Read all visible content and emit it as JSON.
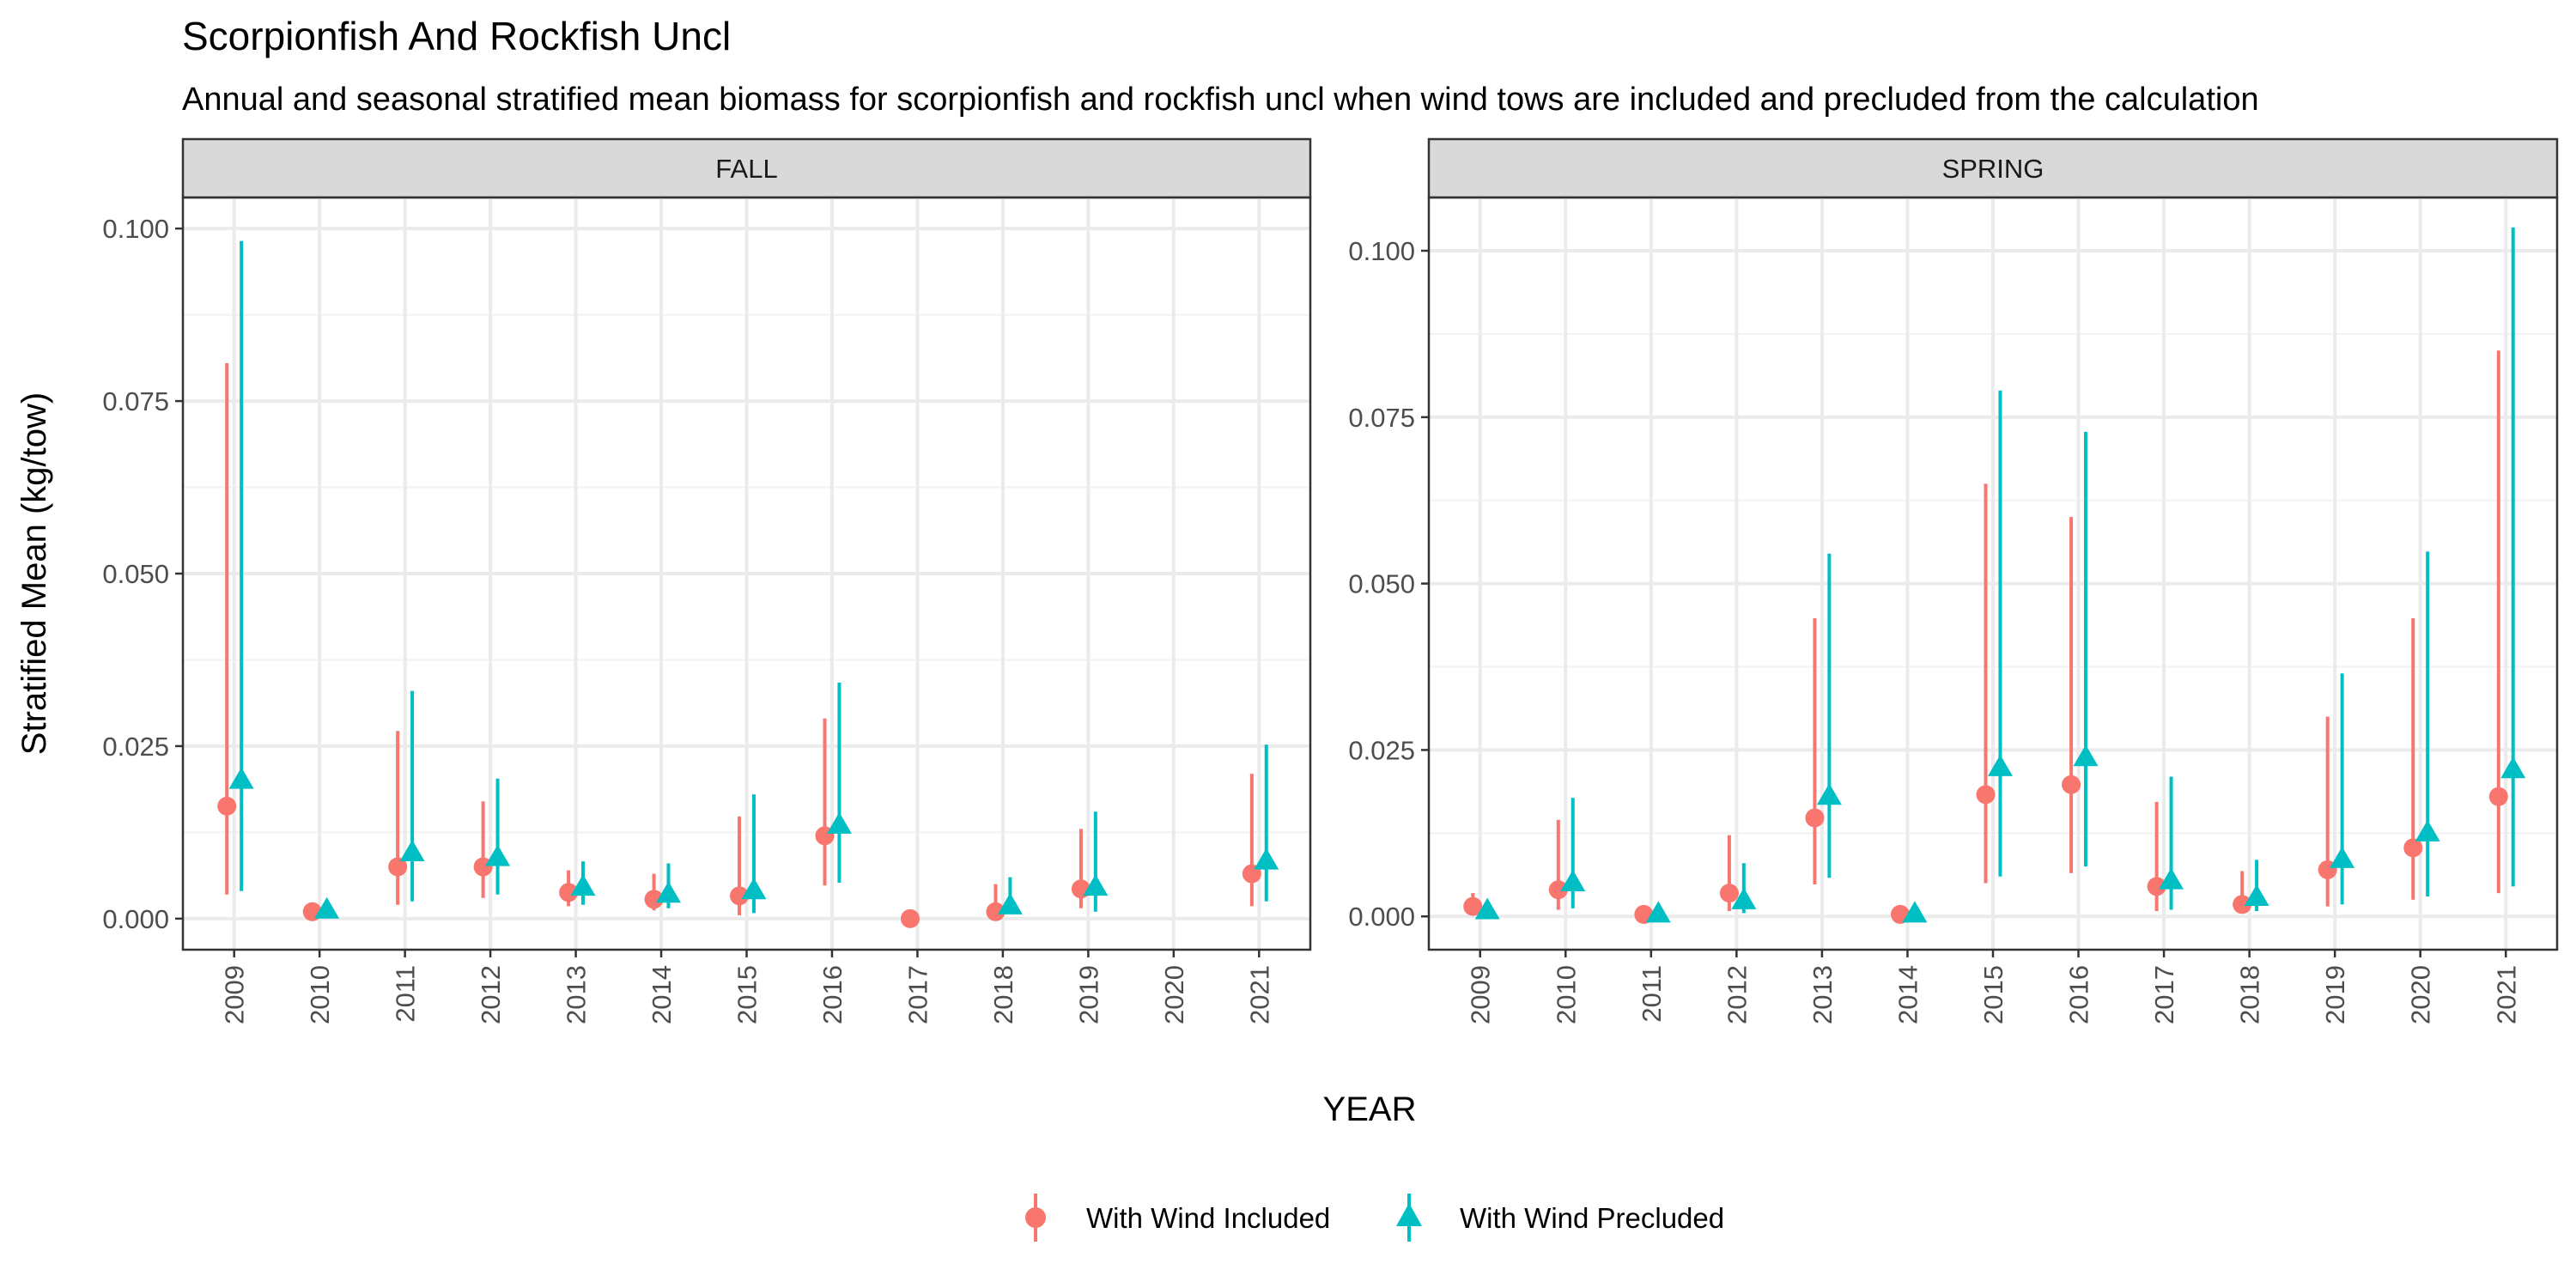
{
  "chart_data": {
    "type": "scatter",
    "title": "Scorpionfish And Rockfish Uncl",
    "subtitle": "Annual and seasonal stratified mean biomass for scorpionfish and rockfish uncl when wind tows are included and precluded from the calculation",
    "xlabel": "YEAR",
    "ylabel": "Stratified Mean (kg/tow)",
    "categories": [
      "2009",
      "2010",
      "2011",
      "2012",
      "2013",
      "2014",
      "2015",
      "2016",
      "2017",
      "2018",
      "2019",
      "2020",
      "2021"
    ],
    "legend": {
      "position": "bottom",
      "entries": [
        "With Wind Included",
        "With Wind Precluded"
      ]
    },
    "colors": {
      "included": "#F8766D",
      "precluded": "#00BFC4"
    },
    "panels": [
      {
        "name": "FALL",
        "ylim": [
          -0.0045,
          0.1045
        ],
        "yticks": [
          0,
          0.025,
          0.05,
          0.075,
          0.1
        ],
        "ytick_labels": [
          "0.000",
          "0.025",
          "0.050",
          "0.075",
          "0.100"
        ],
        "series": [
          {
            "name": "With Wind Included",
            "points": [
              {
                "year": "2009",
                "mean": 0.0163,
                "lo": 0.0035,
                "hi": 0.0805
              },
              {
                "year": "2010",
                "mean": 0.001,
                "lo": 0.0008,
                "hi": 0.0012
              },
              {
                "year": "2011",
                "mean": 0.0075,
                "lo": 0.002,
                "hi": 0.0272
              },
              {
                "year": "2012",
                "mean": 0.0075,
                "lo": 0.003,
                "hi": 0.017
              },
              {
                "year": "2013",
                "mean": 0.0038,
                "lo": 0.0018,
                "hi": 0.007
              },
              {
                "year": "2014",
                "mean": 0.0028,
                "lo": 0.0012,
                "hi": 0.0065
              },
              {
                "year": "2015",
                "mean": 0.0033,
                "lo": 0.0005,
                "hi": 0.0148
              },
              {
                "year": "2016",
                "mean": 0.012,
                "lo": 0.0048,
                "hi": 0.029
              },
              {
                "year": "2017",
                "mean": 0.0,
                "lo": 0.0,
                "hi": 0.0
              },
              {
                "year": "2018",
                "mean": 0.001,
                "lo": 0.0003,
                "hi": 0.005
              },
              {
                "year": "2019",
                "mean": 0.0043,
                "lo": 0.0015,
                "hi": 0.013
              },
              {
                "year": "2021",
                "mean": 0.0065,
                "lo": 0.0018,
                "hi": 0.021
              }
            ]
          },
          {
            "name": "With Wind Precluded",
            "points": [
              {
                "year": "2009",
                "mean": 0.02,
                "lo": 0.004,
                "hi": 0.0982
              },
              {
                "year": "2010",
                "mean": 0.0012,
                "lo": 0.001,
                "hi": 0.0014
              },
              {
                "year": "2011",
                "mean": 0.0095,
                "lo": 0.0025,
                "hi": 0.033
              },
              {
                "year": "2012",
                "mean": 0.0088,
                "lo": 0.0035,
                "hi": 0.0203
              },
              {
                "year": "2013",
                "mean": 0.0045,
                "lo": 0.002,
                "hi": 0.0083
              },
              {
                "year": "2014",
                "mean": 0.0035,
                "lo": 0.0015,
                "hi": 0.008
              },
              {
                "year": "2015",
                "mean": 0.004,
                "lo": 0.0008,
                "hi": 0.018
              },
              {
                "year": "2016",
                "mean": 0.0135,
                "lo": 0.0052,
                "hi": 0.0342
              },
              {
                "year": "2018",
                "mean": 0.0018,
                "lo": 0.0008,
                "hi": 0.006
              },
              {
                "year": "2019",
                "mean": 0.0045,
                "lo": 0.001,
                "hi": 0.0155
              },
              {
                "year": "2021",
                "mean": 0.0083,
                "lo": 0.0025,
                "hi": 0.0252
              }
            ]
          }
        ]
      },
      {
        "name": "SPRING",
        "ylim": [
          -0.005,
          0.108
        ],
        "yticks": [
          0,
          0.025,
          0.05,
          0.075,
          0.1
        ],
        "ytick_labels": [
          "0.000",
          "0.025",
          "0.050",
          "0.075",
          "0.100"
        ],
        "series": [
          {
            "name": "With Wind Included",
            "points": [
              {
                "year": "2009",
                "mean": 0.0015,
                "lo": 0.0005,
                "hi": 0.0035
              },
              {
                "year": "2010",
                "mean": 0.004,
                "lo": 0.001,
                "hi": 0.0145
              },
              {
                "year": "2011",
                "mean": 0.0003,
                "lo": 0.0001,
                "hi": 0.0008
              },
              {
                "year": "2012",
                "mean": 0.0035,
                "lo": 0.0008,
                "hi": 0.0122
              },
              {
                "year": "2013",
                "mean": 0.0148,
                "lo": 0.0048,
                "hi": 0.0448
              },
              {
                "year": "2014",
                "mean": 0.0003,
                "lo": 0.0001,
                "hi": 0.0005
              },
              {
                "year": "2015",
                "mean": 0.0183,
                "lo": 0.005,
                "hi": 0.065
              },
              {
                "year": "2016",
                "mean": 0.0198,
                "lo": 0.0065,
                "hi": 0.06
              },
              {
                "year": "2017",
                "mean": 0.0045,
                "lo": 0.0008,
                "hi": 0.0172
              },
              {
                "year": "2018",
                "mean": 0.0018,
                "lo": 0.0005,
                "hi": 0.0068
              },
              {
                "year": "2019",
                "mean": 0.007,
                "lo": 0.0015,
                "hi": 0.03
              },
              {
                "year": "2020",
                "mean": 0.0103,
                "lo": 0.0025,
                "hi": 0.0448
              },
              {
                "year": "2021",
                "mean": 0.018,
                "lo": 0.0035,
                "hi": 0.085
              }
            ]
          },
          {
            "name": "With Wind Precluded",
            "points": [
              {
                "year": "2009",
                "mean": 0.0008,
                "lo": 0.0003,
                "hi": 0.002
              },
              {
                "year": "2010",
                "mean": 0.005,
                "lo": 0.0012,
                "hi": 0.0178
              },
              {
                "year": "2011",
                "mean": 0.0003,
                "lo": 0.0001,
                "hi": 0.0006
              },
              {
                "year": "2012",
                "mean": 0.0023,
                "lo": 0.0005,
                "hi": 0.008
              },
              {
                "year": "2013",
                "mean": 0.018,
                "lo": 0.0058,
                "hi": 0.0545
              },
              {
                "year": "2014",
                "mean": 0.0003,
                "lo": 0.0001,
                "hi": 0.0005
              },
              {
                "year": "2015",
                "mean": 0.0223,
                "lo": 0.006,
                "hi": 0.079
              },
              {
                "year": "2016",
                "mean": 0.0238,
                "lo": 0.0075,
                "hi": 0.0728
              },
              {
                "year": "2017",
                "mean": 0.0053,
                "lo": 0.001,
                "hi": 0.021
              },
              {
                "year": "2018",
                "mean": 0.0028,
                "lo": 0.0008,
                "hi": 0.0085
              },
              {
                "year": "2019",
                "mean": 0.0085,
                "lo": 0.0018,
                "hi": 0.0365
              },
              {
                "year": "2020",
                "mean": 0.0125,
                "lo": 0.003,
                "hi": 0.0548
              },
              {
                "year": "2021",
                "mean": 0.022,
                "lo": 0.0045,
                "hi": 0.1035
              }
            ]
          }
        ]
      }
    ]
  }
}
